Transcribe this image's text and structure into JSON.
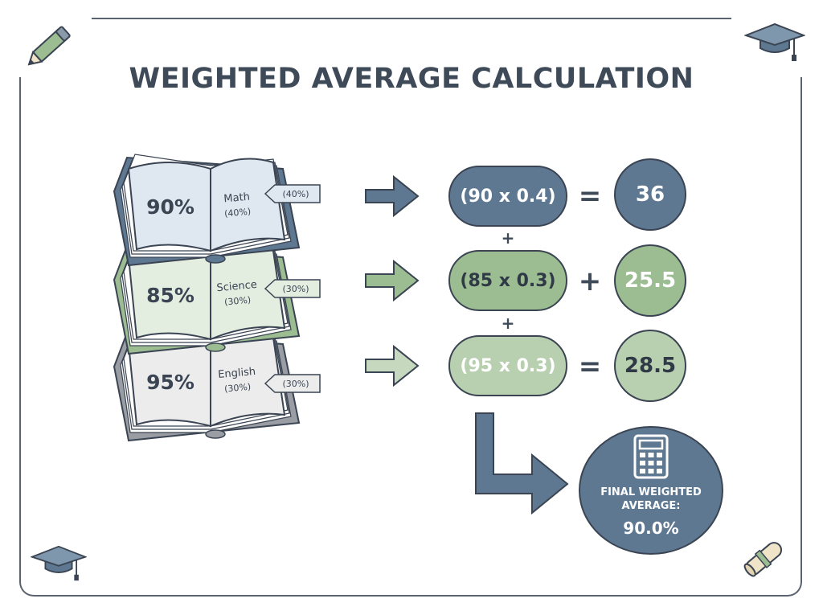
{
  "title": "WEIGHTED AVERAGE CALCULATION",
  "colors": {
    "slate": "#5f7892",
    "slate_light": "#dfe7f0",
    "green": "#9cbc92",
    "green_light": "#e4eee0",
    "gray": "#9a9ea4",
    "gray_light": "#ececec",
    "ink": "#3a4452"
  },
  "subjects": [
    {
      "name": "Math",
      "score": "90%",
      "weight": "(40%)",
      "tag": "(40%)",
      "theme": "slate"
    },
    {
      "name": "Science",
      "score": "85%",
      "weight": "(30%)",
      "tag": "(30%)",
      "theme": "green"
    },
    {
      "name": "English",
      "score": "95%",
      "weight": "(30%)",
      "tag": "(30%)",
      "theme": "gray"
    }
  ],
  "rows": [
    {
      "expression": "(90 x 0.4)",
      "operator": "=",
      "result": "36"
    },
    {
      "expression": "(85 x 0.3)",
      "operator": "+",
      "result": "25.5"
    },
    {
      "expression": "(95 x 0.3)",
      "operator": "=",
      "result": "28.5"
    }
  ],
  "plus_between": [
    "+",
    "+"
  ],
  "final": {
    "label_line1": "FINAL WEIGHTED",
    "label_line2": "AVERAGE:",
    "value": "90.0%"
  },
  "icons": [
    "pencil-icon",
    "graduation-cap-icon",
    "calculator-icon",
    "diploma-icon"
  ]
}
